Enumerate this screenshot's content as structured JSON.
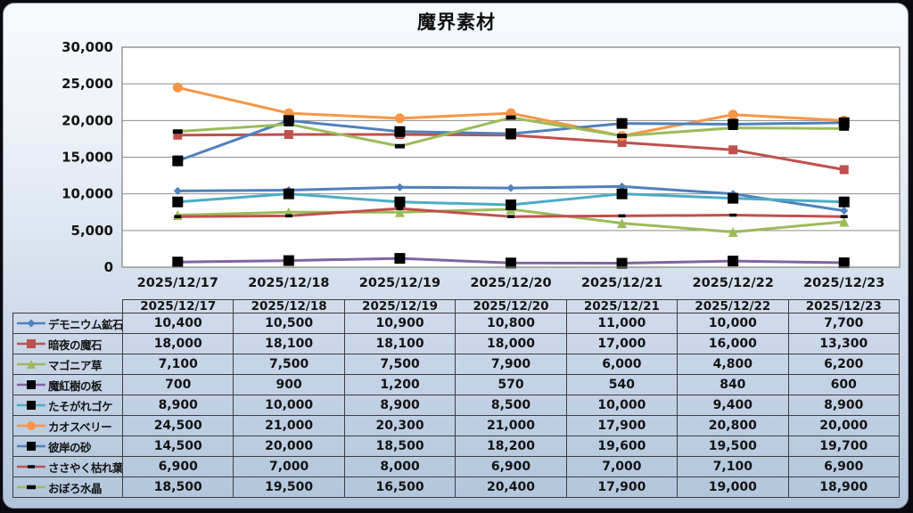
{
  "title": "魔界素材",
  "colors": {
    "outer_background": "#0a0a10",
    "card_border": "#8e99a8",
    "card_gradient_top": "#f7fafd",
    "card_gradient_bottom": "#b2c5db",
    "plot_background": "#ffffff",
    "plot_border": "#7f7f7f",
    "gridline": "#8c8c8c",
    "text": "#141414",
    "table_border": "#3e3e3e",
    "marker_black": "#000000"
  },
  "chart_data": {
    "type": "line",
    "title": "魔界素材",
    "categories": [
      "2025/12/17",
      "2025/12/18",
      "2025/12/19",
      "2025/12/20",
      "2025/12/21",
      "2025/12/22",
      "2025/12/23"
    ],
    "series": [
      {
        "name": "デモニウム鉱石",
        "color": "#4f81bd",
        "marker": "diamond",
        "marker_color": "#4f81bd",
        "marker_size": 9,
        "values": [
          10400,
          10500,
          10900,
          10800,
          11000,
          10000,
          7700
        ]
      },
      {
        "name": "暗夜の魔石",
        "color": "#c0504d",
        "marker": "square",
        "marker_color": "#c0504d",
        "marker_size": 10,
        "values": [
          18000,
          18100,
          18100,
          18000,
          17000,
          16000,
          13300
        ]
      },
      {
        "name": "マゴニア草",
        "color": "#9bbb59",
        "marker": "triangle",
        "marker_color": "#9bbb59",
        "marker_size": 11,
        "values": [
          7100,
          7500,
          7500,
          7900,
          6000,
          4800,
          6200
        ]
      },
      {
        "name": "魔紅樹の板",
        "color": "#8064a2",
        "marker": "square",
        "marker_color": "#000000",
        "marker_size": 12,
        "values": [
          700,
          900,
          1200,
          570,
          540,
          840,
          600
        ]
      },
      {
        "name": "たそがれゴケ",
        "color": "#4bacc6",
        "marker": "square",
        "marker_color": "#000000",
        "marker_size": 12,
        "values": [
          8900,
          10000,
          8900,
          8500,
          10000,
          9400,
          8900
        ]
      },
      {
        "name": "カオスベリー",
        "color": "#f79646",
        "marker": "circle",
        "marker_color": "#f79646",
        "marker_size": 11,
        "values": [
          24500,
          21000,
          20300,
          21000,
          17900,
          20800,
          20000
        ]
      },
      {
        "name": "彼岸の砂",
        "color": "#4f81bd",
        "marker": "square",
        "marker_color": "#000000",
        "marker_size": 12,
        "values": [
          14500,
          20000,
          18500,
          18200,
          19600,
          19500,
          19700
        ]
      },
      {
        "name": "ささやく枯れ葉",
        "color": "#c0504d",
        "marker": "dash",
        "marker_color": "#000000",
        "marker_size": 8,
        "values": [
          6900,
          7000,
          8000,
          6900,
          7000,
          7100,
          6900
        ]
      },
      {
        "name": "おぼろ水晶",
        "color": "#9bbb59",
        "marker": "dash",
        "marker_color": "#000000",
        "marker_size": 11,
        "values": [
          18500,
          19500,
          16500,
          20400,
          17900,
          19000,
          18900
        ]
      }
    ],
    "ylim": [
      0,
      30000
    ],
    "ytick_step": 5000,
    "ytick_labels": [
      "0",
      "5,000",
      "10,000",
      "15,000",
      "20,000",
      "25,000",
      "30,000"
    ],
    "grid": "horizontal",
    "legend_position": "table-left-column",
    "data_table_shown": true
  }
}
